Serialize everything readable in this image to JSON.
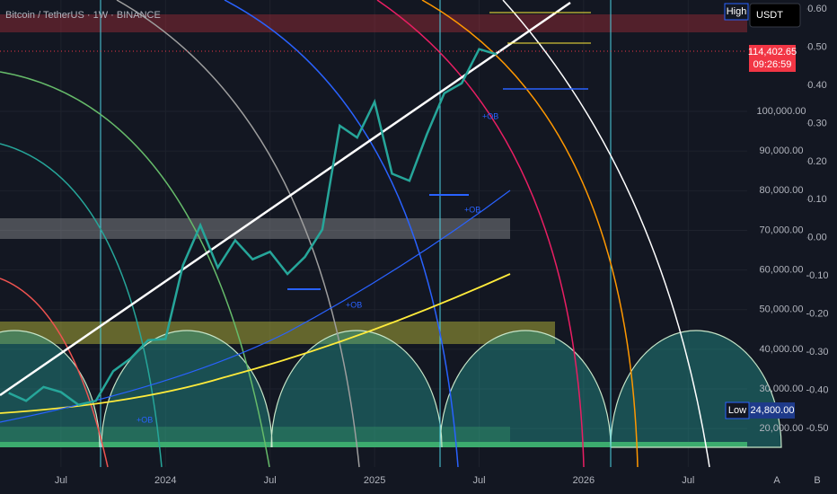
{
  "chart_data": {
    "type": "line",
    "title": "Bitcoin / TetherUS · 1W · BINANCE",
    "categories": [
      null,
      null,
      null,
      "Jul",
      null,
      null,
      null,
      null,
      null,
      "2024",
      null,
      null,
      null,
      null,
      null,
      "Jul",
      null,
      null,
      null,
      null,
      null,
      "2025",
      null,
      null,
      null,
      null,
      null,
      "Jul",
      null,
      null,
      null,
      null,
      null,
      "2026",
      null,
      null,
      null,
      null,
      null,
      "Jul",
      null,
      null
    ],
    "series": [
      {
        "name": "BTCUSDT",
        "color": "#26a69a",
        "values": [
          29000,
          27000,
          30500,
          29200,
          26000,
          27000,
          34500,
          37700,
          42300,
          42600,
          61200,
          71300,
          60600,
          67500,
          62700,
          64600,
          59000,
          63300,
          70200,
          96400,
          93400,
          102400,
          84300,
          82500,
          94200,
          104600,
          107100,
          115700,
          114400,
          null,
          null,
          null,
          null,
          null,
          null,
          null,
          null,
          null,
          null,
          null,
          null,
          null
        ]
      }
    ],
    "ylim": [
      10300,
      128100
    ],
    "yticks": [
      {
        "value": 100000,
        "label": "100,000.00"
      },
      {
        "value": 90000,
        "label": "90,000.00"
      },
      {
        "value": 80000,
        "label": "80,000.00"
      },
      {
        "value": 70000,
        "label": "70,000.00"
      },
      {
        "value": 60000,
        "label": "60,000.00"
      },
      {
        "value": 50000,
        "label": "50,000.00"
      },
      {
        "value": 40000,
        "label": "40,000.00"
      },
      {
        "value": 30000,
        "label": "30,000.00"
      },
      {
        "value": 20000,
        "label": "20,000.00"
      }
    ],
    "y2lim": [
      -0.601,
      0.6236
    ],
    "y2ticks": [
      {
        "value": 0.6,
        "label": "0.60"
      },
      {
        "value": 0.5,
        "label": "0.50"
      },
      {
        "value": 0.4,
        "label": "0.40"
      },
      {
        "value": 0.3,
        "label": "0.30"
      },
      {
        "value": 0.2,
        "label": "0.20"
      },
      {
        "value": 0.1,
        "label": "0.10"
      },
      {
        "value": 0,
        "label": "0.00"
      },
      {
        "value": -0.1,
        "label": "-0.10"
      },
      {
        "value": -0.2,
        "label": "-0.20"
      },
      {
        "value": -0.3,
        "label": "-0.30"
      },
      {
        "value": -0.4,
        "label": "-0.40"
      },
      {
        "value": -0.5,
        "label": "-0.50"
      }
    ],
    "grid": true,
    "price_tag": "114,402.65",
    "countdown": "09:26:59",
    "high_label": "High",
    "currency": "USDT",
    "low_label": "Low",
    "low_value": "24,800.00",
    "annotations": [
      "+OB",
      "+OB",
      "+OB",
      "+OB"
    ],
    "scale_buttons": [
      "A",
      "B"
    ]
  }
}
